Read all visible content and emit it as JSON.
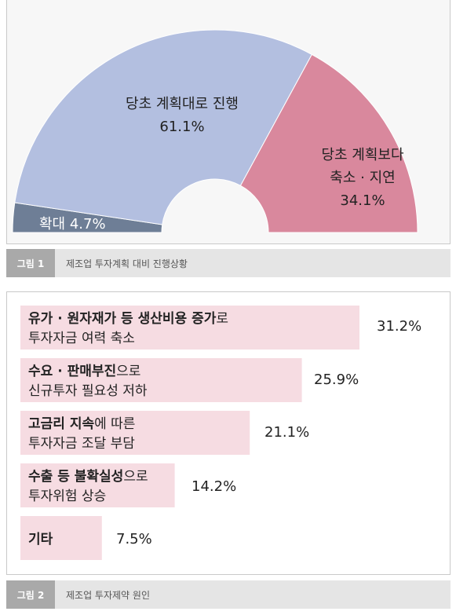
{
  "chart_data": [
    {
      "type": "pie",
      "categories": [
        "확대",
        "당초 계획대로 진행",
        "당초 계획보다 축소 · 지연"
      ],
      "values": [
        4.7,
        61.1,
        34.1
      ],
      "value_labels": [
        "4.7%",
        "61.1%",
        "34.1%"
      ],
      "labels": {
        "expand": "확대",
        "as_planned": "당초 계획대로 진행",
        "reduced_line1": "당초 계획보다",
        "reduced_line2": "축소 · 지연"
      },
      "colors": [
        "#6e7e96",
        "#b3bfe0",
        "#d9889d"
      ],
      "caption_num": "그림 1",
      "caption_title": "제조업 투자계획 대비 진행상황"
    },
    {
      "type": "bar",
      "orientation": "horizontal",
      "categories": [
        "유가 · 원자재가 등 생산비용 증가로 투자자금 여력 축소",
        "수요 · 판매부진으로 신규투자 필요성 저하",
        "고금리 지속에 따른 투자자금 조달 부담",
        "수출 등 불확실성으로 투자위험 상승",
        "기타"
      ],
      "values": [
        31.2,
        25.9,
        21.1,
        14.2,
        7.5
      ],
      "value_labels": [
        "31.2%",
        "25.9%",
        "21.1%",
        "14.2%",
        "7.5%"
      ],
      "rows": [
        {
          "b1": "유가 · 원자재가 등 생산비용 증가",
          "n1": "로",
          "n2": "투자자금 여력 축소"
        },
        {
          "b1": "수요 · 판매부진",
          "n1": "으로",
          "n2": "신규투자 필요성 저하"
        },
        {
          "b1": "고금리 지속",
          "n1": "에 따른",
          "n2": "투자자금 조달 부담"
        },
        {
          "b1": "수출 등 불확실성",
          "n1": "으로",
          "n2": "투자위험 상승"
        },
        {
          "b1": "기타",
          "n1": "",
          "n2": ""
        }
      ],
      "bar_color": "#f6dce2",
      "caption_num": "그림 2",
      "caption_title": "제조업 투자제약 원인"
    }
  ]
}
